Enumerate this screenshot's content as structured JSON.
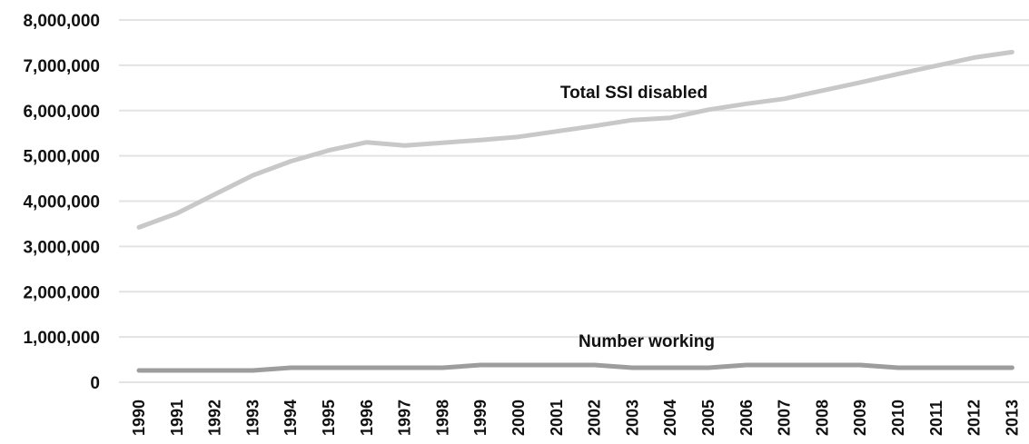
{
  "chart_data": {
    "type": "line",
    "x": [
      "1990",
      "1991",
      "1992",
      "1993",
      "1994",
      "1995",
      "1996",
      "1997",
      "1998",
      "1999",
      "2000",
      "2001",
      "2002",
      "2003",
      "2004",
      "2005",
      "2006",
      "2007",
      "2008",
      "2009",
      "2010",
      "2011",
      "2012",
      "2013"
    ],
    "ylim": [
      0,
      8000000
    ],
    "yticks": [
      0,
      1000000,
      2000000,
      3000000,
      4000000,
      5000000,
      6000000,
      7000000,
      8000000
    ],
    "ytick_labels": [
      "0",
      "1,000,000",
      "2,000,000",
      "3,000,000",
      "4,000,000",
      "5,000,000",
      "6,000,000",
      "7,000,000",
      "8,000,000"
    ],
    "grid": true,
    "legend": "none",
    "series": [
      {
        "name": "Total SSI disabled",
        "color": "#c8c8c8",
        "values": [
          3420000,
          3730000,
          4150000,
          4570000,
          4880000,
          5120000,
          5300000,
          5230000,
          5290000,
          5350000,
          5420000,
          5540000,
          5660000,
          5790000,
          5840000,
          6020000,
          6150000,
          6260000,
          6440000,
          6620000,
          6810000,
          6990000,
          7170000,
          7290000
        ]
      },
      {
        "name": "Number working",
        "color": "#9d9d9d",
        "values": [
          260000,
          260000,
          260000,
          260000,
          320000,
          320000,
          320000,
          320000,
          320000,
          380000,
          380000,
          380000,
          380000,
          320000,
          320000,
          320000,
          380000,
          380000,
          380000,
          380000,
          320000,
          320000,
          320000,
          320000
        ]
      }
    ]
  }
}
